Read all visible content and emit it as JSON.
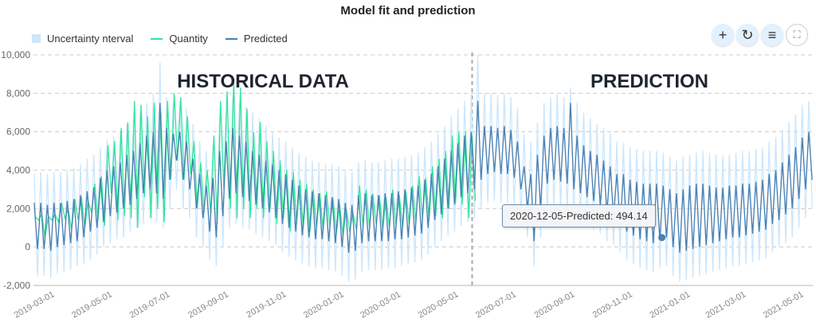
{
  "chart_data": {
    "type": "line",
    "title": "Model fit and prediction",
    "legend": {
      "position": "top-left",
      "entries": [
        "Uncertainty nterval",
        "Quantity",
        "Predicted"
      ]
    },
    "colors": {
      "uncertainty": "#cce6fb",
      "quantity": "#2ee69a",
      "predicted": "#4a7fb0",
      "grid": "#cccccc"
    },
    "ylim": [
      -2000,
      10000
    ],
    "yticks": [
      -2000,
      0,
      2000,
      4000,
      6000,
      8000,
      10000
    ],
    "ytick_labels": [
      "-2,000",
      "0",
      "2,000",
      "4,000",
      "6,000",
      "8,000",
      "10,000"
    ],
    "xticks": [
      "2019-03-01",
      "2019-05-01",
      "2019-07-01",
      "2019-09-01",
      "2019-11-01",
      "2020-01-01",
      "2020-03-01",
      "2020-05-01",
      "2020-07-01",
      "2020-09-01",
      "2020-11-01",
      "2021-01-01",
      "2021-03-01",
      "2021-05-01"
    ],
    "grid": "horizontal dashed",
    "forecast_start": "2020-05-15",
    "annotations": [
      "HISTORICAL DATA",
      "PREDICTION"
    ],
    "columns": [
      "week",
      "predicted_high",
      "predicted_low",
      "uncertainty_upper",
      "uncertainty_lower",
      "quantity_high",
      "quantity_low"
    ],
    "weekly": [
      [
        "2019-02-07",
        2300,
        -100,
        3800,
        -1500,
        1600,
        1400
      ],
      [
        "2019-02-14",
        2300,
        -100,
        3900,
        -1500,
        1700,
        500
      ],
      [
        "2019-02-21",
        2200,
        -200,
        3800,
        -1600,
        1600,
        1400
      ],
      [
        "2019-02-28",
        2300,
        0,
        3900,
        -1400,
        1700,
        1300
      ],
      [
        "2019-03-07",
        2300,
        100,
        3900,
        -1300,
        2300,
        1500
      ],
      [
        "2019-03-14",
        2400,
        200,
        4000,
        -1200,
        2000,
        900
      ],
      [
        "2019-03-21",
        2500,
        300,
        4100,
        -1000,
        2500,
        1400
      ],
      [
        "2019-03-28",
        2700,
        500,
        4300,
        -900,
        2600,
        1000
      ],
      [
        "2019-04-04",
        2900,
        800,
        4600,
        -700,
        2400,
        1800
      ],
      [
        "2019-04-11",
        3100,
        1000,
        4800,
        -400,
        3300,
        1400
      ],
      [
        "2019-04-18",
        3600,
        1300,
        5200,
        0,
        3700,
        1100
      ],
      [
        "2019-04-25",
        4000,
        1600,
        5600,
        200,
        5300,
        2800
      ],
      [
        "2019-05-02",
        4200,
        1800,
        5800,
        400,
        5500,
        1400
      ],
      [
        "2019-05-09",
        4400,
        2000,
        6000,
        500,
        6200,
        1600
      ],
      [
        "2019-05-16",
        4800,
        2200,
        6400,
        800,
        6500,
        1500
      ],
      [
        "2019-05-23",
        5000,
        2500,
        6600,
        1000,
        7600,
        1000
      ],
      [
        "2019-05-30",
        5400,
        2800,
        7000,
        1200,
        7400,
        2600
      ],
      [
        "2019-06-06",
        5800,
        3000,
        7500,
        1500,
        6800,
        1500
      ],
      [
        "2019-06-13",
        6000,
        2800,
        8000,
        1300,
        7500,
        2000
      ],
      [
        "2019-06-20",
        7500,
        2500,
        9600,
        1000,
        7000,
        1300
      ],
      [
        "2019-06-27",
        6200,
        3500,
        7800,
        2000,
        7600,
        3500
      ],
      [
        "2019-07-04",
        5900,
        4500,
        7500,
        3000,
        8000,
        4500
      ],
      [
        "2019-07-11",
        6000,
        3500,
        7600,
        2000,
        7800,
        3500
      ],
      [
        "2019-07-18",
        5500,
        3000,
        7200,
        1500,
        6800,
        3800
      ],
      [
        "2019-07-25",
        4600,
        2000,
        6400,
        500,
        5500,
        2000
      ],
      [
        "2019-08-01",
        3800,
        1500,
        5500,
        0,
        4400,
        1800
      ],
      [
        "2019-08-08",
        3200,
        800,
        5000,
        -700,
        4000,
        1800
      ],
      [
        "2019-08-15",
        3600,
        500,
        5300,
        -1000,
        5800,
        1200
      ],
      [
        "2019-08-22",
        5000,
        1600,
        6700,
        0,
        7600,
        3000
      ],
      [
        "2019-08-29",
        5500,
        2500,
        7000,
        1000,
        8100,
        2000
      ],
      [
        "2019-09-05",
        6200,
        2800,
        7800,
        1200,
        8700,
        1500
      ],
      [
        "2019-09-12",
        5800,
        2600,
        7500,
        1000,
        8300,
        2000
      ],
      [
        "2019-09-19",
        5500,
        2400,
        7300,
        900,
        7200,
        1500
      ],
      [
        "2019-09-26",
        5000,
        2200,
        7000,
        700,
        6000,
        2000
      ],
      [
        "2019-10-03",
        4800,
        2000,
        6700,
        500,
        6500,
        1500
      ],
      [
        "2019-10-10",
        4500,
        1800,
        6300,
        300,
        5500,
        2000
      ],
      [
        "2019-10-17",
        4300,
        1500,
        6000,
        100,
        5000,
        1200
      ],
      [
        "2019-10-24",
        4000,
        1200,
        5700,
        -300,
        4500,
        1500
      ],
      [
        "2019-10-31",
        3800,
        1000,
        5500,
        -500,
        4000,
        800
      ],
      [
        "2019-11-07",
        3500,
        800,
        5200,
        -700,
        3900,
        1200
      ],
      [
        "2019-11-14",
        3200,
        600,
        4900,
        -900,
        3500,
        1000
      ],
      [
        "2019-11-21",
        3000,
        500,
        4700,
        -1000,
        3300,
        800
      ],
      [
        "2019-11-28",
        2900,
        400,
        4500,
        -1100,
        3000,
        1000
      ],
      [
        "2019-12-05",
        2800,
        400,
        4400,
        -1100,
        2800,
        900
      ],
      [
        "2019-12-12",
        2700,
        300,
        4300,
        -1200,
        2900,
        1100
      ],
      [
        "2019-12-19",
        2600,
        200,
        4300,
        -1300,
        2500,
        700
      ],
      [
        "2019-12-26",
        2500,
        0,
        4200,
        -1500,
        2200,
        600
      ],
      [
        "2020-01-02",
        2300,
        -300,
        4000,
        -1800,
        2000,
        800
      ],
      [
        "2020-01-09",
        2200,
        -200,
        3900,
        -1700,
        1800,
        900
      ],
      [
        "2020-01-16",
        2700,
        200,
        4400,
        -1300,
        3200,
        1100
      ],
      [
        "2020-01-23",
        2800,
        300,
        4500,
        -1200,
        3000,
        1000
      ],
      [
        "2020-01-30",
        2700,
        300,
        4400,
        -1200,
        2800,
        1200
      ],
      [
        "2020-02-06",
        2700,
        300,
        4400,
        -1200,
        2700,
        900
      ],
      [
        "2020-02-13",
        2800,
        300,
        4500,
        -1100,
        2600,
        1000
      ],
      [
        "2020-02-20",
        2800,
        400,
        4600,
        -1100,
        3000,
        1100
      ],
      [
        "2020-02-27",
        2900,
        400,
        4600,
        -1000,
        2700,
        1000
      ],
      [
        "2020-03-05",
        3000,
        500,
        4700,
        -900,
        2900,
        1200
      ],
      [
        "2020-03-12",
        3100,
        600,
        4800,
        -800,
        3200,
        1300
      ],
      [
        "2020-03-19",
        3200,
        700,
        4900,
        -700,
        3700,
        1500
      ],
      [
        "2020-03-26",
        3500,
        1000,
        5200,
        -400,
        3600,
        1400
      ],
      [
        "2020-04-02",
        3800,
        1400,
        5500,
        0,
        4200,
        1600
      ],
      [
        "2020-04-09",
        4200,
        1700,
        5900,
        300,
        4600,
        1500
      ],
      [
        "2020-04-16",
        4600,
        2000,
        6300,
        600,
        5000,
        2000
      ],
      [
        "2020-04-23",
        5000,
        2200,
        6800,
        800,
        5800,
        2300
      ],
      [
        "2020-04-30",
        5400,
        2600,
        7200,
        1100,
        6000,
        2200
      ],
      [
        "2020-05-07",
        5800,
        2800,
        7600,
        1300,
        6000,
        1500
      ],
      [
        "2020-05-14",
        6000,
        3000,
        8000,
        1500,
        5800,
        2400
      ],
      [
        "2020-05-21",
        7600,
        3500,
        10000,
        2000,
        null,
        null
      ],
      [
        "2020-05-28",
        6300,
        3800,
        8000,
        2300,
        null,
        null
      ],
      [
        "2020-06-04",
        6300,
        3900,
        8000,
        2400,
        null,
        null
      ],
      [
        "2020-06-11",
        6200,
        3800,
        7900,
        2300,
        null,
        null
      ],
      [
        "2020-06-18",
        6300,
        3800,
        8000,
        2300,
        null,
        null
      ],
      [
        "2020-06-25",
        6100,
        3600,
        7800,
        2100,
        null,
        null
      ],
      [
        "2020-07-02",
        5500,
        3000,
        7200,
        1500,
        null,
        null
      ],
      [
        "2020-07-09",
        4200,
        2000,
        5900,
        500,
        null,
        null
      ],
      [
        "2020-07-16",
        3800,
        300,
        5500,
        -1000,
        null,
        null
      ],
      [
        "2020-07-23",
        4800,
        2000,
        6500,
        500,
        null,
        null
      ],
      [
        "2020-07-30",
        5800,
        3300,
        7500,
        1800,
        null,
        null
      ],
      [
        "2020-08-06",
        6200,
        3500,
        7800,
        2000,
        null,
        null
      ],
      [
        "2020-08-13",
        6300,
        3400,
        8000,
        1900,
        null,
        null
      ],
      [
        "2020-08-20",
        6200,
        3300,
        7800,
        1800,
        null,
        null
      ],
      [
        "2020-08-27",
        7500,
        3000,
        8300,
        1500,
        null,
        null
      ],
      [
        "2020-09-03",
        5800,
        2800,
        7500,
        1300,
        null,
        null
      ],
      [
        "2020-09-10",
        5300,
        2600,
        7000,
        1100,
        null,
        null
      ],
      [
        "2020-09-17",
        5000,
        2400,
        6700,
        900,
        null,
        null
      ],
      [
        "2020-09-24",
        4800,
        2200,
        6400,
        700,
        null,
        null
      ],
      [
        "2020-10-01",
        4500,
        1800,
        6200,
        300,
        null,
        null
      ],
      [
        "2020-10-08",
        4200,
        1600,
        5900,
        100,
        null,
        null
      ],
      [
        "2020-10-15",
        3800,
        1200,
        5500,
        -300,
        null,
        null
      ],
      [
        "2020-10-22",
        3800,
        800,
        5400,
        -700,
        null,
        null
      ],
      [
        "2020-10-29",
        3500,
        600,
        5200,
        -900,
        null,
        null
      ],
      [
        "2020-11-05",
        3400,
        400,
        5100,
        -1100,
        null,
        null
      ],
      [
        "2020-11-12",
        3300,
        300,
        5000,
        -1200,
        null,
        null
      ],
      [
        "2020-11-19",
        3300,
        200,
        5000,
        -1300,
        null,
        null
      ],
      [
        "2020-11-26",
        3300,
        400,
        5000,
        -1100,
        null,
        null
      ],
      [
        "2020-12-03",
        3200,
        494,
        4900,
        -1000,
        null,
        null
      ],
      [
        "2020-12-10",
        3000,
        0,
        4700,
        -1500,
        null,
        null
      ],
      [
        "2020-12-17",
        2800,
        -300,
        4500,
        -1800,
        null,
        null
      ],
      [
        "2020-12-24",
        3000,
        -200,
        4700,
        -1700,
        null,
        null
      ],
      [
        "2020-12-31",
        3200,
        -100,
        4800,
        -1600,
        null,
        null
      ],
      [
        "2021-01-07",
        3300,
        0,
        4900,
        -1500,
        null,
        null
      ],
      [
        "2021-01-14",
        3300,
        100,
        5000,
        -1400,
        null,
        null
      ],
      [
        "2021-01-21",
        3200,
        200,
        4900,
        -1300,
        null,
        null
      ],
      [
        "2021-01-28",
        3100,
        300,
        4800,
        -1200,
        null,
        null
      ],
      [
        "2021-02-04",
        3100,
        400,
        4800,
        -1100,
        null,
        null
      ],
      [
        "2021-02-11",
        3200,
        500,
        4800,
        -1000,
        null,
        null
      ],
      [
        "2021-02-18",
        3200,
        500,
        4900,
        -1000,
        null,
        null
      ],
      [
        "2021-02-25",
        3300,
        600,
        5000,
        -900,
        null,
        null
      ],
      [
        "2021-03-04",
        3300,
        700,
        5000,
        -800,
        null,
        null
      ],
      [
        "2021-03-11",
        3400,
        800,
        5100,
        -700,
        null,
        null
      ],
      [
        "2021-03-18",
        3500,
        900,
        5200,
        -600,
        null,
        null
      ],
      [
        "2021-03-25",
        3800,
        1200,
        5500,
        -300,
        null,
        null
      ],
      [
        "2021-04-01",
        4000,
        1400,
        5700,
        0,
        null,
        null
      ],
      [
        "2021-04-08",
        4400,
        1700,
        6100,
        200,
        null,
        null
      ],
      [
        "2021-04-15",
        4800,
        2000,
        6500,
        500,
        null,
        null
      ],
      [
        "2021-04-22",
        5200,
        2500,
        6900,
        1000,
        null,
        null
      ],
      [
        "2021-04-29",
        5700,
        3000,
        7400,
        1500,
        null,
        null
      ],
      [
        "2021-05-06",
        6000,
        3500,
        7600,
        2000,
        null,
        null
      ]
    ],
    "tooltip": {
      "date": "2020-12-05",
      "series": "Predicted",
      "value": 494.14,
      "text": "2020-12-05-Predicted: 494.14"
    }
  },
  "toolbar": {
    "buttons": [
      {
        "icon": "plus-icon",
        "glyph": "+"
      },
      {
        "icon": "reset-icon",
        "glyph": "↻"
      },
      {
        "icon": "menu-icon",
        "glyph": "≡"
      },
      {
        "icon": "fullscreen-icon",
        "glyph": "⛶"
      }
    ]
  }
}
